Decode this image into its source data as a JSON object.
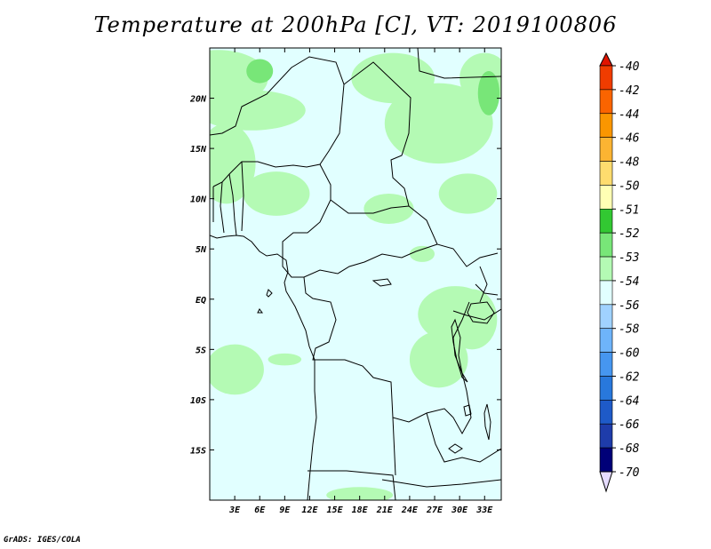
{
  "title": "Temperature at 200hPa [C], VT: 2019100806",
  "credit": "GrADS: IGES/COLA",
  "map": {
    "lon_range": [
      0,
      35
    ],
    "lat_range": [
      -20,
      25
    ],
    "lat_ticks": [
      {
        "value": 20,
        "label": "20N"
      },
      {
        "value": 15,
        "label": "15N"
      },
      {
        "value": 10,
        "label": "10N"
      },
      {
        "value": 5,
        "label": "5N"
      },
      {
        "value": 0,
        "label": "EQ"
      },
      {
        "value": -5,
        "label": "5S"
      },
      {
        "value": -10,
        "label": "10S"
      },
      {
        "value": -15,
        "label": "15S"
      }
    ],
    "lon_ticks": [
      {
        "value": 3,
        "label": "3E"
      },
      {
        "value": 6,
        "label": "6E"
      },
      {
        "value": 9,
        "label": "9E"
      },
      {
        "value": 12,
        "label": "12E"
      },
      {
        "value": 15,
        "label": "15E"
      },
      {
        "value": 18,
        "label": "18E"
      },
      {
        "value": 21,
        "label": "21E"
      },
      {
        "value": 24,
        "label": "24E"
      },
      {
        "value": 27,
        "label": "27E"
      },
      {
        "value": 30,
        "label": "30E"
      },
      {
        "value": 33,
        "label": "33E"
      }
    ],
    "background_color": "#e1ffff",
    "coastline_color": "#000000"
  },
  "colorbar": {
    "levels": [
      {
        "label": "-40",
        "color": "#e11400"
      },
      {
        "label": "-42",
        "color": "#f03c00"
      },
      {
        "label": "-44",
        "color": "#fa6400"
      },
      {
        "label": "-46",
        "color": "#fa9600"
      },
      {
        "label": "-48",
        "color": "#fcb432"
      },
      {
        "label": "-50",
        "color": "#fedc6e"
      },
      {
        "label": "-51",
        "color": "#ffffb4"
      },
      {
        "label": "-52",
        "color": "#32c832"
      },
      {
        "label": "-53",
        "color": "#78e678"
      },
      {
        "label": "-54",
        "color": "#b4fab4"
      },
      {
        "label": "-56",
        "color": "#e1ffff"
      },
      {
        "label": "-58",
        "color": "#a0d2ff"
      },
      {
        "label": "-60",
        "color": "#6eb4fa"
      },
      {
        "label": "-62",
        "color": "#4696f0"
      },
      {
        "label": "-64",
        "color": "#2878dc"
      },
      {
        "label": "-66",
        "color": "#1e5ac8"
      },
      {
        "label": "-68",
        "color": "#1e3caa"
      },
      {
        "label": "-70",
        "color": "#000078"
      }
    ],
    "under_color": "#e6dcff"
  },
  "fields": [
    {
      "level": "-53",
      "color": "#b4fab4",
      "areas": [
        {
          "lon": 1.0,
          "lat": 22.0,
          "rlon": 6.0,
          "rlat": 2.8
        },
        {
          "lon": 5.0,
          "lat": 18.8,
          "rlon": 6.5,
          "rlat": 2.0
        },
        {
          "lon": 2.0,
          "lat": 13.5,
          "rlon": 3.5,
          "rlat": 4.0
        },
        {
          "lon": 8.0,
          "lat": 10.5,
          "rlon": 4.0,
          "rlat": 2.2
        },
        {
          "lon": 22.0,
          "lat": 22.0,
          "rlon": 5.0,
          "rlat": 2.5
        },
        {
          "lon": 27.5,
          "lat": 17.5,
          "rlon": 6.5,
          "rlat": 4.0
        },
        {
          "lon": 33.0,
          "lat": 22.0,
          "rlon": 3.0,
          "rlat": 2.5
        },
        {
          "lon": 21.5,
          "lat": 9.0,
          "rlon": 3.0,
          "rlat": 1.5
        },
        {
          "lon": 31.0,
          "lat": 10.5,
          "rlon": 3.5,
          "rlat": 2.0
        },
        {
          "lon": 25.5,
          "lat": 4.5,
          "rlon": 1.5,
          "rlat": 0.8
        },
        {
          "lon": 29.5,
          "lat": -1.5,
          "rlon": 4.5,
          "rlat": 2.8
        },
        {
          "lon": 27.5,
          "lat": -6.0,
          "rlon": 3.5,
          "rlat": 2.8
        },
        {
          "lon": 31.5,
          "lat": -2.0,
          "rlon": 3.0,
          "rlat": 3.0
        },
        {
          "lon": 3.0,
          "lat": -7.0,
          "rlon": 3.5,
          "rlat": 2.5
        },
        {
          "lon": 9.0,
          "lat": -6.0,
          "rlon": 2.0,
          "rlat": 0.6
        },
        {
          "lon": 18.0,
          "lat": -19.5,
          "rlon": 4.0,
          "rlat": 0.8
        }
      ]
    },
    {
      "level": "-52",
      "color": "#78e678",
      "areas": [
        {
          "lon": 6.0,
          "lat": 22.7,
          "rlon": 1.6,
          "rlat": 1.2
        },
        {
          "lon": 33.5,
          "lat": 20.5,
          "rlon": 1.3,
          "rlat": 2.2
        }
      ]
    }
  ]
}
